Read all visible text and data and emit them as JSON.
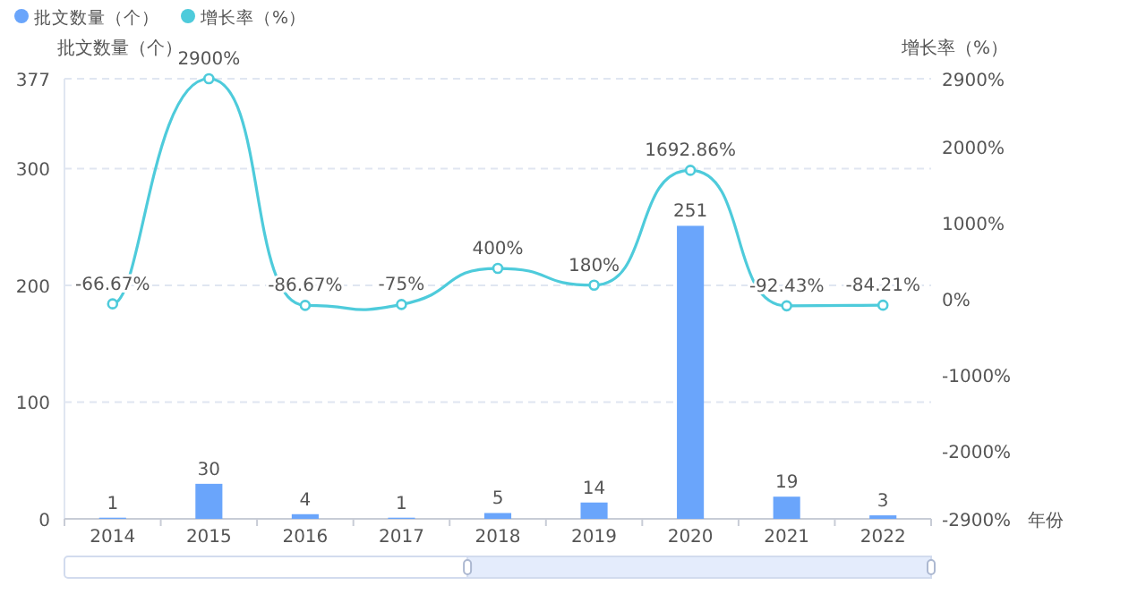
{
  "chart_data": {
    "type": "bar",
    "categories": [
      "2014",
      "2015",
      "2016",
      "2017",
      "2018",
      "2019",
      "2020",
      "2021",
      "2022"
    ],
    "xlabel": "年份",
    "ylabel": "批文数量（个）",
    "y2label": "增长率（%）",
    "series": [
      {
        "name": "批文数量（个）",
        "color": "#6aa5fb",
        "values": [
          1,
          30,
          4,
          1,
          5,
          14,
          251,
          19,
          3
        ],
        "value_labels": [
          "1",
          "30",
          "4",
          "1",
          "5",
          "14",
          "251",
          "19",
          "3"
        ]
      },
      {
        "name": "增长率（%）",
        "type": "line",
        "axis": "y2",
        "color": "#4ecbdb",
        "values": [
          -66.67,
          2900,
          -86.67,
          -75,
          400,
          180,
          1692.86,
          -92.43,
          -84.21
        ],
        "value_labels": [
          "-66.67%",
          "2900%",
          "-86.67%",
          "-75%",
          "400%",
          "180%",
          "1692.86%",
          "-92.43%",
          "-84.21%"
        ]
      }
    ],
    "ylim": [
      0,
      377
    ],
    "yticks": [
      0,
      100,
      200,
      300,
      377
    ],
    "y2lim": [
      -2900,
      2900
    ],
    "y2ticks": [
      {
        "value": -2900,
        "label": "-2900%"
      },
      {
        "value": -2000,
        "label": "-2000%"
      },
      {
        "value": -1000,
        "label": "-1000%"
      },
      {
        "value": 0,
        "label": "0%"
      },
      {
        "value": 1000,
        "label": "1000%"
      },
      {
        "value": 2000,
        "label": "2000%"
      },
      {
        "value": 2900,
        "label": "2900%"
      }
    ],
    "grid": "y",
    "legend": "top left",
    "marker": "circle",
    "line_style": "solid"
  }
}
